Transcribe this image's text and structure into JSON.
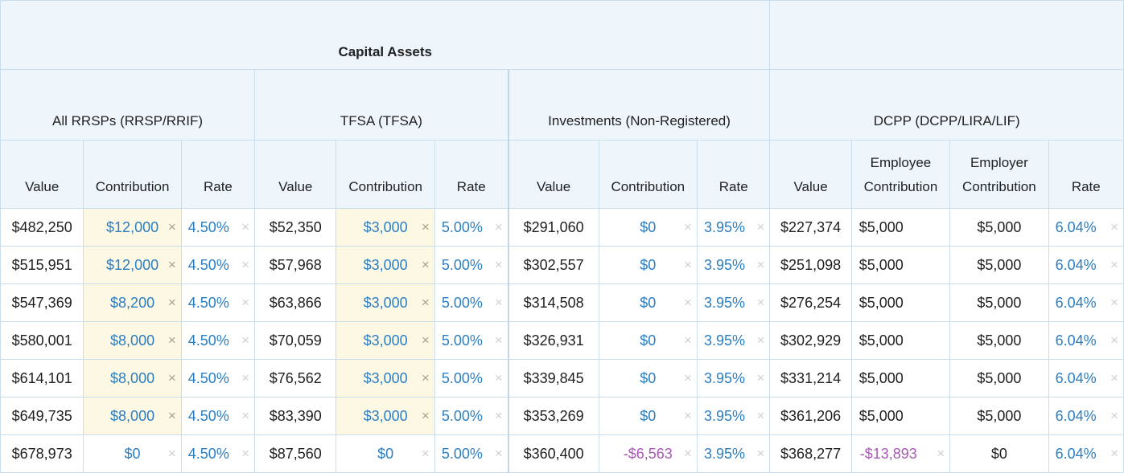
{
  "header": {
    "title": "Capital Assets",
    "groups": [
      "All RRSPs (RRSP/RRIF)",
      "TFSA (TFSA)",
      "Investments (Non-Registered)",
      "DCPP (DCPP/LIRA/LIF)"
    ],
    "columns": {
      "value": "Value",
      "contribution": "Contribution",
      "rate": "Rate",
      "employee_line1": "Employee",
      "employer_line1": "Employer",
      "contribution_line2": "Contribution"
    }
  },
  "clear_icon": "×",
  "rows": [
    {
      "rrsp_value": "$482,250",
      "rrsp_contrib": "$12,000",
      "rrsp_rate": "4.50%",
      "tfsa_value": "$52,350",
      "tfsa_contrib": "$3,000",
      "tfsa_rate": "5.00%",
      "inv_value": "$291,060",
      "inv_contrib": "$0",
      "inv_rate": "3.95%",
      "dcpp_value": "$227,374",
      "dcpp_employee": "$5,000",
      "dcpp_employer": "$5,000",
      "dcpp_rate": "6.04%"
    },
    {
      "rrsp_value": "$515,951",
      "rrsp_contrib": "$12,000",
      "rrsp_rate": "4.50%",
      "tfsa_value": "$57,968",
      "tfsa_contrib": "$3,000",
      "tfsa_rate": "5.00%",
      "inv_value": "$302,557",
      "inv_contrib": "$0",
      "inv_rate": "3.95%",
      "dcpp_value": "$251,098",
      "dcpp_employee": "$5,000",
      "dcpp_employer": "$5,000",
      "dcpp_rate": "6.04%"
    },
    {
      "rrsp_value": "$547,369",
      "rrsp_contrib": "$8,200",
      "rrsp_rate": "4.50%",
      "tfsa_value": "$63,866",
      "tfsa_contrib": "$3,000",
      "tfsa_rate": "5.00%",
      "inv_value": "$314,508",
      "inv_contrib": "$0",
      "inv_rate": "3.95%",
      "dcpp_value": "$276,254",
      "dcpp_employee": "$5,000",
      "dcpp_employer": "$5,000",
      "dcpp_rate": "6.04%"
    },
    {
      "rrsp_value": "$580,001",
      "rrsp_contrib": "$8,000",
      "rrsp_rate": "4.50%",
      "tfsa_value": "$70,059",
      "tfsa_contrib": "$3,000",
      "tfsa_rate": "5.00%",
      "inv_value": "$326,931",
      "inv_contrib": "$0",
      "inv_rate": "3.95%",
      "dcpp_value": "$302,929",
      "dcpp_employee": "$5,000",
      "dcpp_employer": "$5,000",
      "dcpp_rate": "6.04%"
    },
    {
      "rrsp_value": "$614,101",
      "rrsp_contrib": "$8,000",
      "rrsp_rate": "4.50%",
      "tfsa_value": "$76,562",
      "tfsa_contrib": "$3,000",
      "tfsa_rate": "5.00%",
      "inv_value": "$339,845",
      "inv_contrib": "$0",
      "inv_rate": "3.95%",
      "dcpp_value": "$331,214",
      "dcpp_employee": "$5,000",
      "dcpp_employer": "$5,000",
      "dcpp_rate": "6.04%"
    },
    {
      "rrsp_value": "$649,735",
      "rrsp_contrib": "$8,000",
      "rrsp_rate": "4.50%",
      "tfsa_value": "$83,390",
      "tfsa_contrib": "$3,000",
      "tfsa_rate": "5.00%",
      "inv_value": "$353,269",
      "inv_contrib": "$0",
      "inv_rate": "3.95%",
      "dcpp_value": "$361,206",
      "dcpp_employee": "$5,000",
      "dcpp_employer": "$5,000",
      "dcpp_rate": "6.04%"
    },
    {
      "rrsp_value": "$678,973",
      "rrsp_contrib": "$0",
      "rrsp_rate": "4.50%",
      "tfsa_value": "$87,560",
      "tfsa_contrib": "$0",
      "tfsa_rate": "5.00%",
      "inv_value": "$360,400",
      "inv_contrib": "-$6,563",
      "inv_rate": "3.95%",
      "dcpp_value": "$368,277",
      "dcpp_employee": "-$13,893",
      "dcpp_employer": "$0",
      "dcpp_rate": "6.04%"
    }
  ],
  "highlighted_rows": {
    "rrsp_contrib": 6,
    "tfsa_contrib": 6
  },
  "colors": {
    "header_bg": "#eef5fb",
    "border": "#c9dded",
    "link_blue": "#2b7ec2",
    "negative_purple": "#a957b6",
    "highlight_bg": "#fdf8e3"
  }
}
